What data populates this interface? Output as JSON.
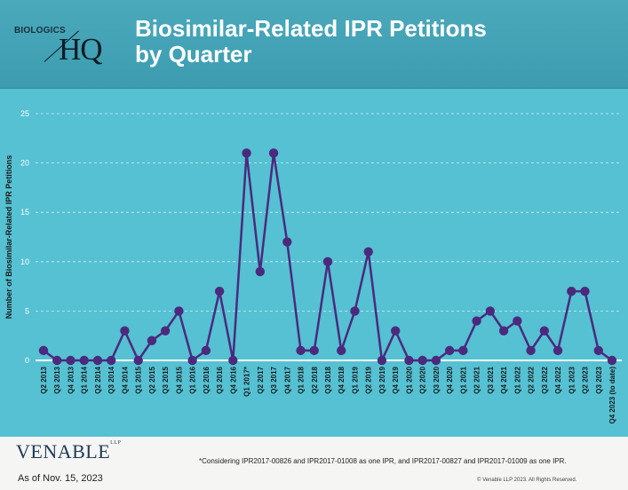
{
  "header": {
    "logo_word": "BIOLOGICS",
    "logo_mark": "HQ",
    "title_line1": "Biosimilar-Related IPR Petitions",
    "title_line2": "by Quarter"
  },
  "footer": {
    "venable": "VENABLE",
    "venable_llp": "LLP",
    "as_of": "As of Nov. 15, 2023",
    "footnote": "*Considering IPR2017-00826 and IPR2017-01008 as one IPR, and IPR2017-00827 and IPR2017-01009 as one IPR.",
    "copyright": "© Venable LLP 2023. All Rights Reserved."
  },
  "colors": {
    "header_bg": "#3d9cb0",
    "chart_bg": "#55c1d3",
    "line": "#4b2a7e",
    "marker": "#4b2a7e",
    "axis_text": "#ffffff"
  },
  "chart_data": {
    "type": "line",
    "title": "",
    "xlabel": "",
    "ylabel": "Number of Biosimilar-Related IPR Petitions",
    "ylim": [
      0,
      25
    ],
    "yticks": [
      0,
      5,
      10,
      15,
      20,
      25
    ],
    "grid": "horizontal dashed",
    "categories": [
      "Q2 2013",
      "Q3 2013",
      "Q4 2013",
      "Q1 2014",
      "Q2 2014",
      "Q3 2014",
      "Q4 2014",
      "Q1 2015",
      "Q2 2015",
      "Q3 2015",
      "Q4 2015",
      "Q1 2016",
      "Q2 2016",
      "Q3 2016",
      "Q4 2016",
      "Q1 2017*",
      "Q2 2017",
      "Q3 2017",
      "Q4 2017",
      "Q1 2018",
      "Q2 2018",
      "Q3 2018",
      "Q4 2018",
      "Q1 2019",
      "Q2 2019",
      "Q3 2019",
      "Q4 2019",
      "Q1 2020",
      "Q2 2020",
      "Q3 2020",
      "Q4 2020",
      "Q1 2021",
      "Q2 2021",
      "Q3 2021",
      "Q4 2021",
      "Q1 2022",
      "Q2 2022",
      "Q3 2022",
      "Q4 2022",
      "Q1 2023",
      "Q2 2023",
      "Q3 2023",
      "Q4 2023 (to date)"
    ],
    "values": [
      1,
      0,
      0,
      0,
      0,
      0,
      3,
      0,
      2,
      3,
      5,
      0,
      1,
      7,
      0,
      21,
      9,
      21,
      12,
      1,
      1,
      10,
      1,
      5,
      11,
      0,
      3,
      0,
      0,
      0,
      1,
      1,
      4,
      5,
      3,
      4,
      1,
      3,
      1,
      7,
      7,
      1,
      0
    ]
  }
}
